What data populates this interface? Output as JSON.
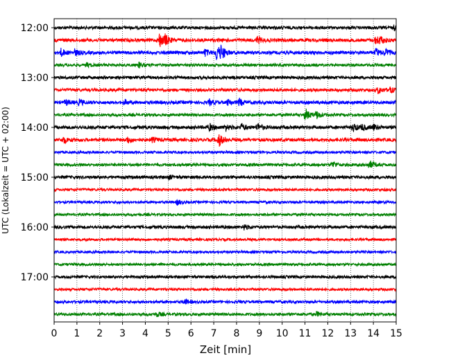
{
  "chart_data": {
    "type": "line",
    "title": "",
    "xlabel": "Zeit  [min]",
    "ylabel": "UTC (Lokalzeit = UTC + 02:00)",
    "xlim": [
      0,
      15
    ],
    "x_ticks": [
      0,
      1,
      2,
      3,
      4,
      5,
      6,
      7,
      8,
      9,
      10,
      11,
      12,
      13,
      14,
      15
    ],
    "x_tick_labels": [
      "0",
      "1",
      "2",
      "3",
      "4",
      "5",
      "6",
      "7",
      "8",
      "9",
      "10",
      "11",
      "12",
      "13",
      "14",
      "15"
    ],
    "y_tick_labels": [
      "12:00",
      "13:00",
      "14:00",
      "15:00",
      "16:00",
      "17:00"
    ],
    "vertical_grid": "dotted, at every minute",
    "trace_colors": [
      "#000000",
      "#ff0000",
      "#0000ff",
      "#008000"
    ],
    "trace_interval_minutes": 15,
    "series": [
      {
        "start": "12:00",
        "color": "#000000",
        "amp": 2.2,
        "events": [
          [
            14.9,
            3.5
          ]
        ]
      },
      {
        "start": "12:15",
        "color": "#ff0000",
        "amp": 2.4,
        "events": [
          [
            4.6,
            11
          ],
          [
            4.85,
            7
          ],
          [
            8.9,
            5
          ],
          [
            14.1,
            7
          ],
          [
            14.3,
            4
          ]
        ]
      },
      {
        "start": "12:30",
        "color": "#0000ff",
        "amp": 2.4,
        "events": [
          [
            0.3,
            5
          ],
          [
            0.9,
            4
          ],
          [
            6.6,
            5
          ],
          [
            7.1,
            13
          ],
          [
            7.3,
            9
          ],
          [
            14.1,
            6
          ],
          [
            14.5,
            5
          ]
        ]
      },
      {
        "start": "12:45",
        "color": "#008000",
        "amp": 2.0,
        "events": [
          [
            1.4,
            3
          ],
          [
            3.7,
            4
          ]
        ]
      },
      {
        "start": "13:00",
        "color": "#000000",
        "amp": 2.2,
        "events": []
      },
      {
        "start": "13:15",
        "color": "#ff0000",
        "amp": 2.2,
        "events": [
          [
            14.2,
            5
          ],
          [
            14.7,
            4
          ]
        ]
      },
      {
        "start": "13:30",
        "color": "#0000ff",
        "amp": 2.4,
        "events": [
          [
            0.5,
            4
          ],
          [
            1.1,
            4
          ],
          [
            3.1,
            3
          ],
          [
            6.8,
            4
          ],
          [
            7.6,
            4
          ],
          [
            8.1,
            5
          ]
        ]
      },
      {
        "start": "13:45",
        "color": "#008000",
        "amp": 2.0,
        "events": [
          [
            11.0,
            10
          ],
          [
            11.5,
            5
          ]
        ]
      },
      {
        "start": "14:00",
        "color": "#000000",
        "amp": 2.4,
        "events": [
          [
            6.8,
            5
          ],
          [
            7.5,
            5
          ],
          [
            8.2,
            5
          ],
          [
            8.9,
            6
          ],
          [
            13.1,
            6
          ],
          [
            13.5,
            4
          ],
          [
            14.0,
            4
          ]
        ]
      },
      {
        "start": "14:15",
        "color": "#ff0000",
        "amp": 2.4,
        "events": [
          [
            0.4,
            5
          ],
          [
            3.2,
            5
          ],
          [
            7.2,
            10
          ],
          [
            4.3,
            3
          ]
        ]
      },
      {
        "start": "14:30",
        "color": "#0000ff",
        "amp": 1.8,
        "events": []
      },
      {
        "start": "14:45",
        "color": "#008000",
        "amp": 2.0,
        "events": [
          [
            12.2,
            5
          ],
          [
            13.8,
            7
          ]
        ]
      },
      {
        "start": "15:00",
        "color": "#000000",
        "amp": 2.2,
        "events": [
          [
            5.0,
            3
          ]
        ]
      },
      {
        "start": "15:15",
        "color": "#ff0000",
        "amp": 1.8,
        "events": []
      },
      {
        "start": "15:30",
        "color": "#0000ff",
        "amp": 1.8,
        "events": [
          [
            5.4,
            4
          ]
        ]
      },
      {
        "start": "15:45",
        "color": "#008000",
        "amp": 1.8,
        "events": []
      },
      {
        "start": "16:00",
        "color": "#000000",
        "amp": 2.2,
        "events": [
          [
            8.3,
            4
          ]
        ]
      },
      {
        "start": "16:15",
        "color": "#ff0000",
        "amp": 1.8,
        "events": []
      },
      {
        "start": "16:30",
        "color": "#0000ff",
        "amp": 1.8,
        "events": []
      },
      {
        "start": "16:45",
        "color": "#008000",
        "amp": 1.8,
        "events": []
      },
      {
        "start": "17:00",
        "color": "#000000",
        "amp": 2.0,
        "events": []
      },
      {
        "start": "17:15",
        "color": "#ff0000",
        "amp": 1.8,
        "events": []
      },
      {
        "start": "17:30",
        "color": "#0000ff",
        "amp": 2.0,
        "events": [
          [
            5.7,
            4
          ]
        ]
      },
      {
        "start": "17:45",
        "color": "#008000",
        "amp": 2.0,
        "events": [
          [
            4.5,
            3
          ],
          [
            11.5,
            3
          ]
        ]
      }
    ]
  }
}
